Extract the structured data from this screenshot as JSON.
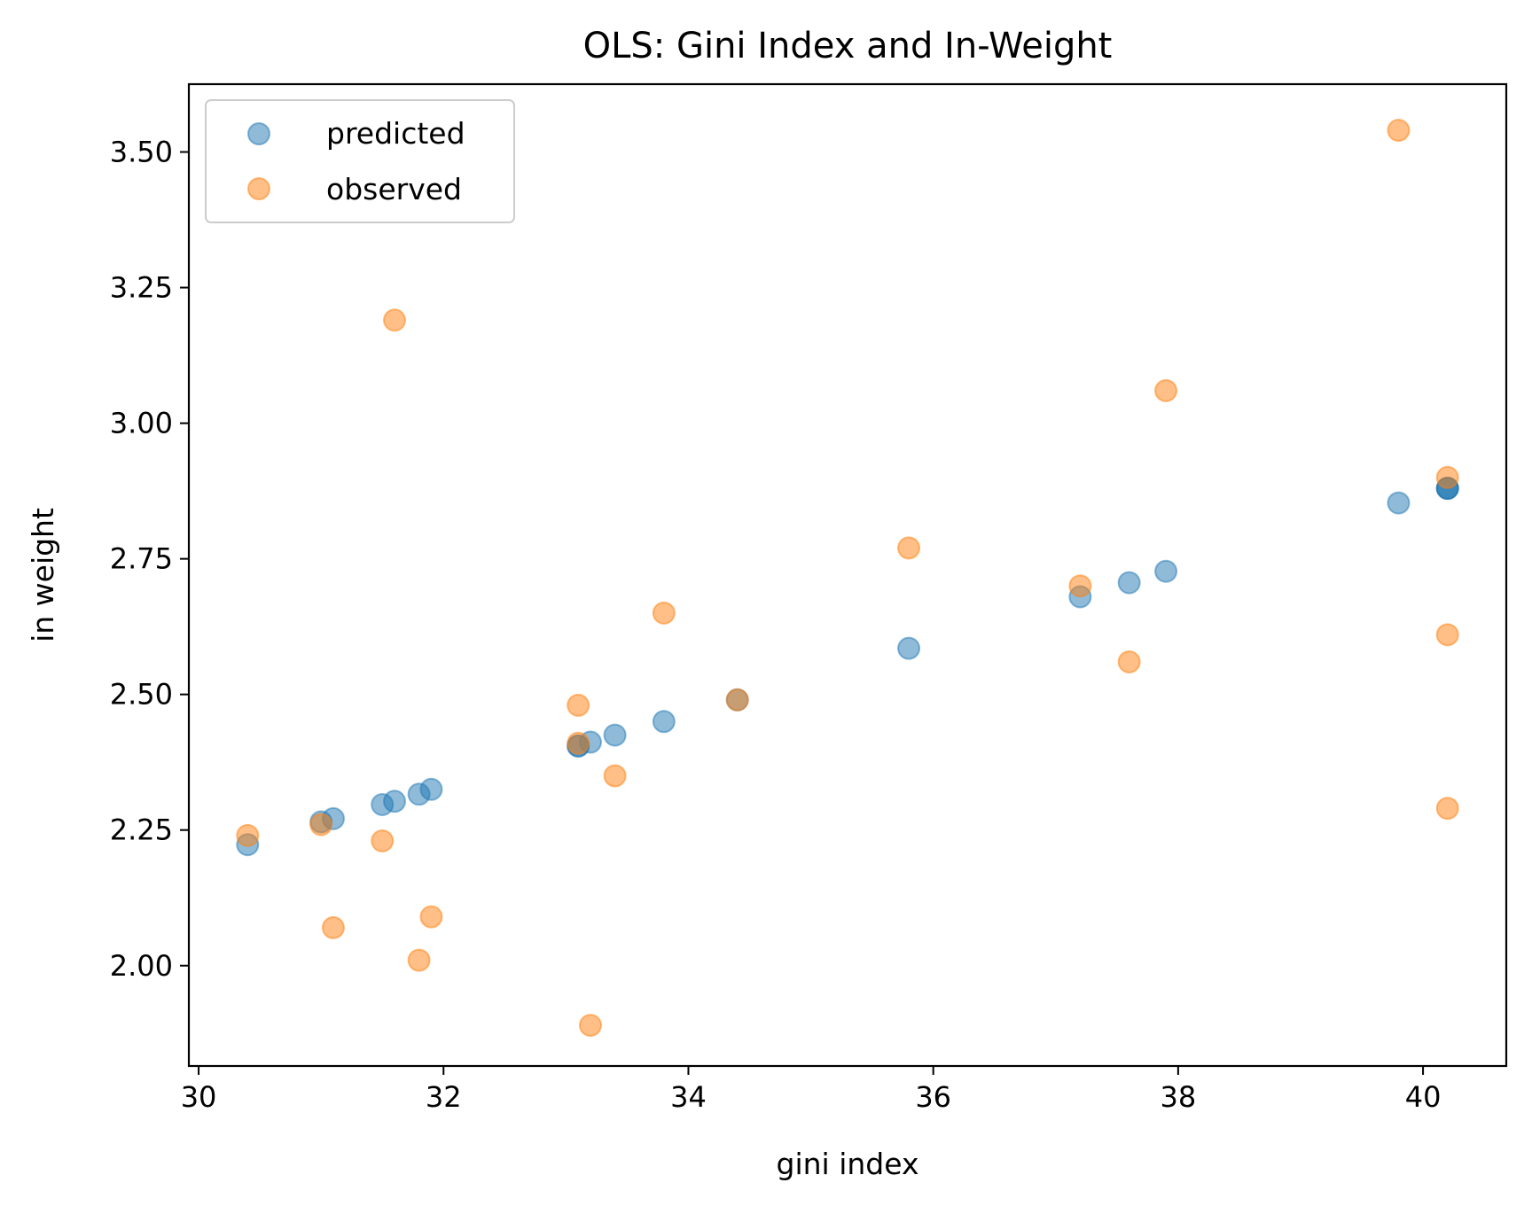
{
  "chart_data": {
    "type": "scatter",
    "title": "OLS: Gini Index and In-Weight",
    "xlabel": "gini index",
    "ylabel": "in weight",
    "xlim": [
      29.92,
      40.68
    ],
    "ylim": [
      1.815,
      3.625
    ],
    "x_ticks": [
      30,
      32,
      34,
      36,
      38,
      40
    ],
    "x_tick_labels": [
      "30",
      "32",
      "34",
      "36",
      "38",
      "40"
    ],
    "y_ticks": [
      2.0,
      2.25,
      2.5,
      2.75,
      3.0,
      3.25,
      3.5
    ],
    "y_tick_labels": [
      "2.00",
      "2.25",
      "2.50",
      "2.75",
      "3.00",
      "3.25",
      "3.50"
    ],
    "grid": false,
    "legend_position": "upper-left",
    "series": [
      {
        "name": "predicted",
        "color": "#1f77b4",
        "points": [
          {
            "x": 30.4,
            "y": 2.223
          },
          {
            "x": 31.0,
            "y": 2.265
          },
          {
            "x": 31.1,
            "y": 2.271
          },
          {
            "x": 31.5,
            "y": 2.297
          },
          {
            "x": 31.6,
            "y": 2.303
          },
          {
            "x": 31.8,
            "y": 2.316
          },
          {
            "x": 31.9,
            "y": 2.325
          },
          {
            "x": 33.1,
            "y": 2.405
          },
          {
            "x": 33.1,
            "y": 2.405
          },
          {
            "x": 33.2,
            "y": 2.412
          },
          {
            "x": 33.4,
            "y": 2.425
          },
          {
            "x": 33.8,
            "y": 2.45
          },
          {
            "x": 34.4,
            "y": 2.49
          },
          {
            "x": 35.8,
            "y": 2.585
          },
          {
            "x": 37.2,
            "y": 2.68
          },
          {
            "x": 37.6,
            "y": 2.706
          },
          {
            "x": 37.9,
            "y": 2.727
          },
          {
            "x": 39.8,
            "y": 2.853
          },
          {
            "x": 40.2,
            "y": 2.88
          },
          {
            "x": 40.2,
            "y": 2.88
          },
          {
            "x": 40.2,
            "y": 2.88
          }
        ]
      },
      {
        "name": "observed",
        "color": "#ff7f0e",
        "points": [
          {
            "x": 30.4,
            "y": 2.24
          },
          {
            "x": 31.0,
            "y": 2.26
          },
          {
            "x": 31.1,
            "y": 2.07
          },
          {
            "x": 31.5,
            "y": 2.23
          },
          {
            "x": 31.6,
            "y": 3.19
          },
          {
            "x": 31.8,
            "y": 2.01
          },
          {
            "x": 31.9,
            "y": 2.09
          },
          {
            "x": 33.1,
            "y": 2.48
          },
          {
            "x": 33.1,
            "y": 2.41
          },
          {
            "x": 33.2,
            "y": 1.89
          },
          {
            "x": 33.4,
            "y": 2.35
          },
          {
            "x": 33.8,
            "y": 2.65
          },
          {
            "x": 34.4,
            "y": 2.49
          },
          {
            "x": 35.8,
            "y": 2.77
          },
          {
            "x": 37.2,
            "y": 2.7
          },
          {
            "x": 37.6,
            "y": 2.56
          },
          {
            "x": 37.9,
            "y": 3.06
          },
          {
            "x": 39.8,
            "y": 3.54
          },
          {
            "x": 40.2,
            "y": 2.9
          },
          {
            "x": 40.2,
            "y": 2.61
          },
          {
            "x": 40.2,
            "y": 2.29
          }
        ]
      }
    ]
  }
}
